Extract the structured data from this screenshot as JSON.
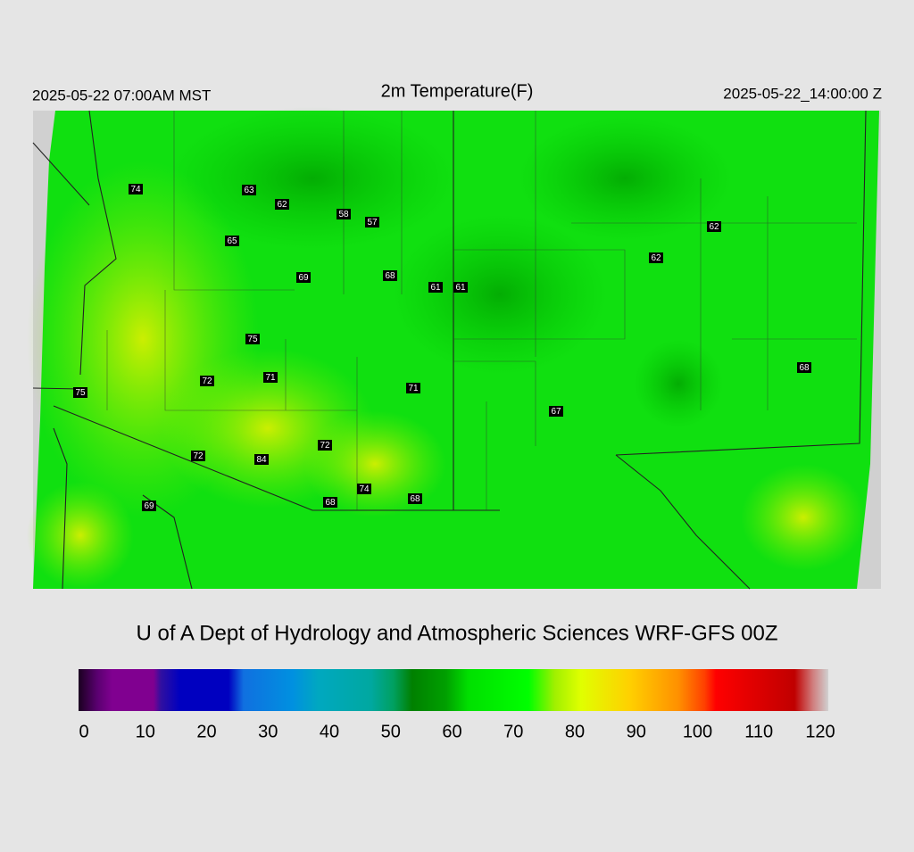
{
  "header": {
    "local_time": "2025-05-22 07:00AM MST",
    "title": "2m Temperature(F)",
    "valid_time": "2025-05-22_14:00:00 Z"
  },
  "stations": [
    "74",
    "63",
    "62",
    "58",
    "57",
    "65",
    "69",
    "68",
    "61",
    "61",
    "62",
    "62",
    "75",
    "72",
    "71",
    "75",
    "71",
    "67",
    "68",
    "72",
    "72",
    "84",
    "74",
    "68",
    "68",
    "69"
  ],
  "credit": "U of A Dept of Hydrology and Atmospheric Sciences WRF-GFS 00Z",
  "colorbar": {
    "range": [
      0,
      120
    ],
    "ticks": [
      0,
      10,
      20,
      30,
      40,
      50,
      60,
      70,
      80,
      90,
      100,
      110,
      120
    ]
  }
}
